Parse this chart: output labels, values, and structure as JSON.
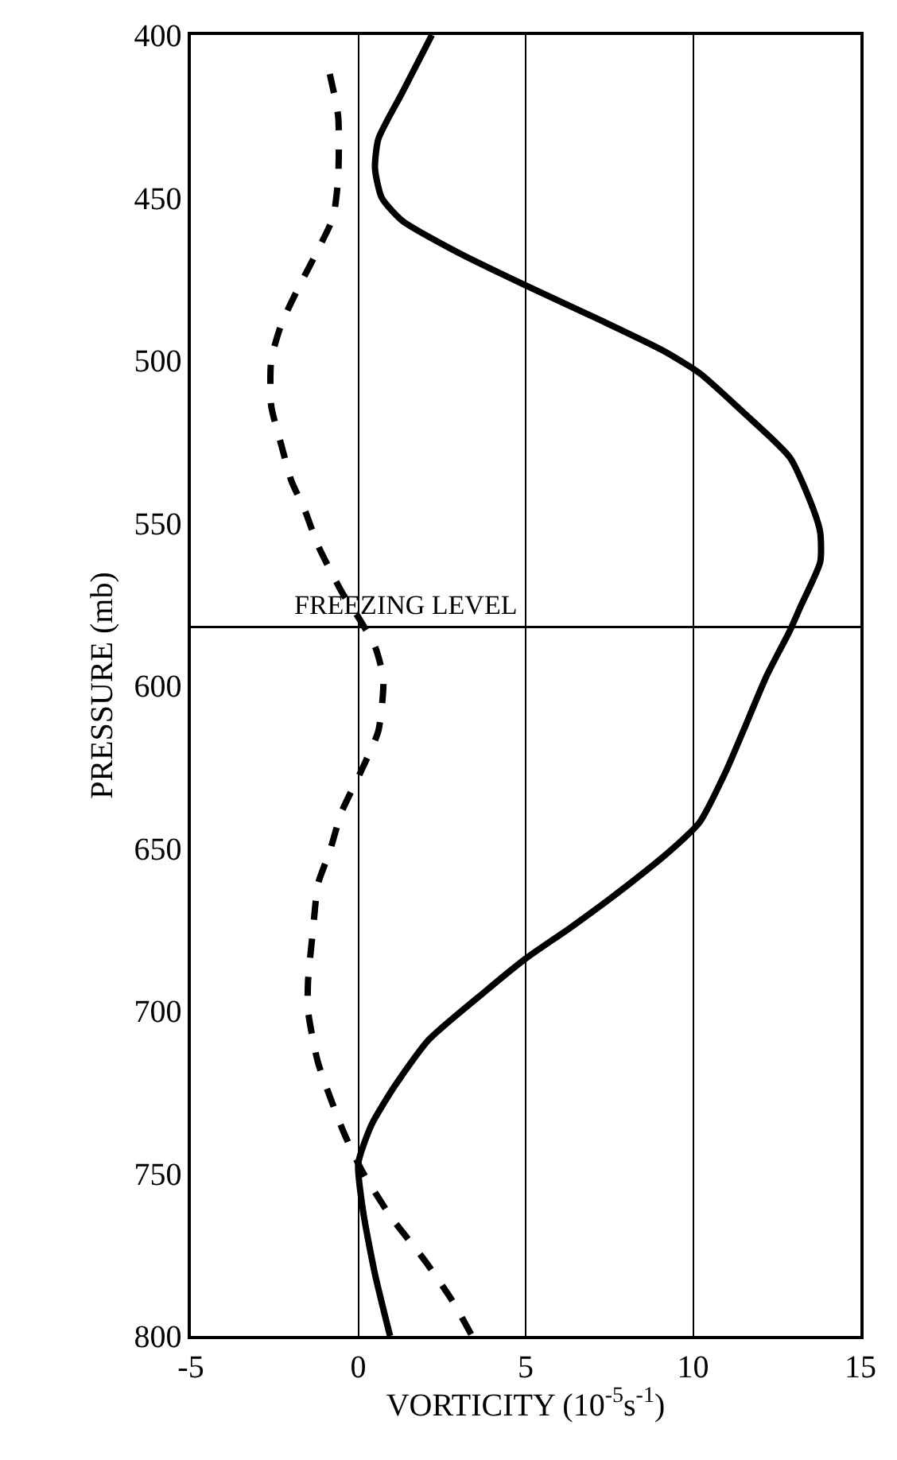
{
  "chart_data": {
    "type": "line",
    "xlabel": "VORTICITY (10$^{-5}$s$^{-1}$)",
    "ylabel": "PRESSURE (mb)",
    "xlim": [
      -5,
      15
    ],
    "xticks": [
      -5,
      0,
      5,
      10,
      15
    ],
    "ylim": [
      800,
      400
    ],
    "yticks": [
      400,
      450,
      500,
      550,
      600,
      650,
      700,
      750,
      800
    ],
    "grid": "x",
    "marker": "none",
    "series": [
      {
        "color": "#000000",
        "line_style": "solid",
        "x": [
          2.2,
          1.3,
          0.6,
          0.5,
          0.7,
          1.3,
          3.0,
          5.0,
          7.3,
          9.1,
          10.2,
          11.5,
          12.9,
          13.6,
          13.8,
          13.8,
          13.2,
          12.9,
          12.2,
          11.5,
          11.0,
          10.2,
          9.3,
          8.1,
          6.4,
          5.0,
          3.8,
          2.1,
          1.1,
          0.4,
          0.0,
          0.15,
          0.5,
          0.95
        ],
        "values": [
          400,
          418,
          432,
          441,
          450,
          457,
          467,
          477,
          488,
          497,
          504,
          516,
          530,
          546,
          553,
          562,
          576,
          583,
          597,
          614,
          626,
          642,
          651,
          661,
          674,
          684,
          694,
          709,
          723,
          735,
          747,
          762,
          781,
          800
        ]
      },
      {
        "color": "#000000",
        "line_style": "dashed",
        "x": [
          -0.85,
          -0.6,
          -0.6,
          -0.75,
          -1.2,
          -1.8,
          -2.3,
          -2.6,
          -2.6,
          -2.3,
          -2.0,
          -1.6,
          -1.2,
          -0.45,
          0.0,
          0.5,
          0.75,
          0.6,
          0.1,
          -0.5,
          -0.85,
          -1.2,
          -1.35,
          -1.5,
          -1.5,
          -1.2,
          -0.45,
          0.1,
          0.95,
          2.0,
          2.8,
          3.4
        ],
        "values": [
          412,
          425,
          444,
          456,
          466,
          478,
          489,
          500,
          514,
          526,
          537,
          546,
          557,
          572,
          579,
          588,
          598,
          614,
          626,
          639,
          651,
          661,
          675,
          691,
          700,
          716,
          737,
          749,
          763,
          777,
          789,
          800
        ]
      }
    ],
    "ref_lines": [
      {
        "axis": "y",
        "value": 582,
        "label": "FREEZING LEVEL",
        "color": "#000000",
        "line_style": "solid"
      }
    ]
  }
}
